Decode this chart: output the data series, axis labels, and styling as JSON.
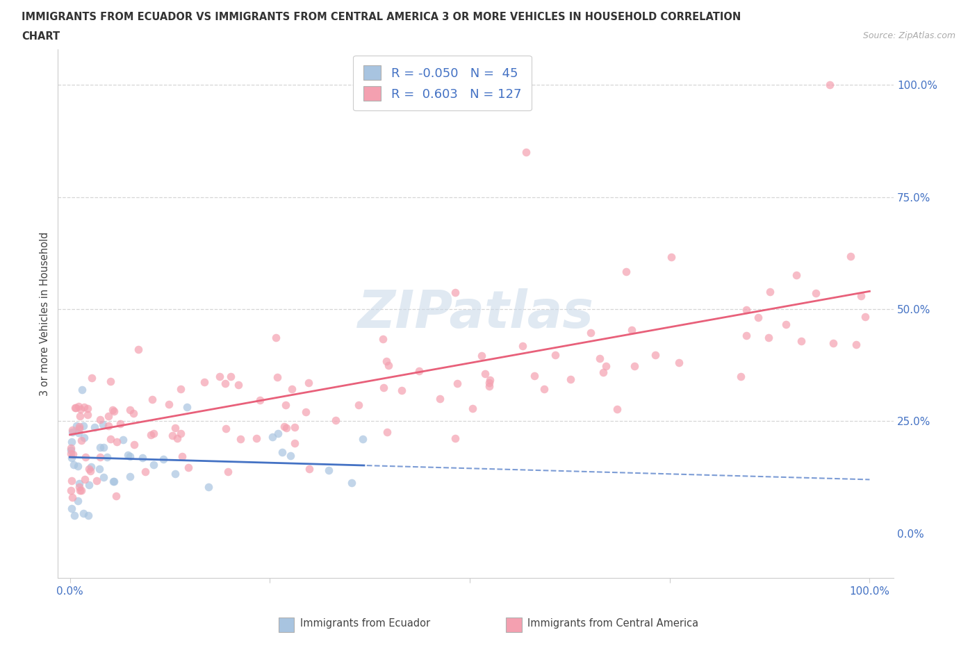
{
  "title_line1": "IMMIGRANTS FROM ECUADOR VS IMMIGRANTS FROM CENTRAL AMERICA 3 OR MORE VEHICLES IN HOUSEHOLD CORRELATION",
  "title_line2": "CHART",
  "source": "Source: ZipAtlas.com",
  "ylabel": "3 or more Vehicles in Household",
  "ecuador_color": "#a8c4e0",
  "central_america_color": "#f4a0b0",
  "ecuador_line_color": "#4472c4",
  "central_america_line_color": "#e8607a",
  "right_tick_color": "#4472c4",
  "bottom_tick_color": "#4472c4",
  "ecuador_R": -0.05,
  "ecuador_N": 45,
  "central_america_R": 0.603,
  "central_america_N": 127,
  "watermark": "ZIPatlas",
  "legend_label_ecuador": "Immigrants from Ecuador",
  "legend_label_central": "Immigrants from Central America",
  "grid_color": "#cccccc",
  "axis_color": "#cccccc"
}
